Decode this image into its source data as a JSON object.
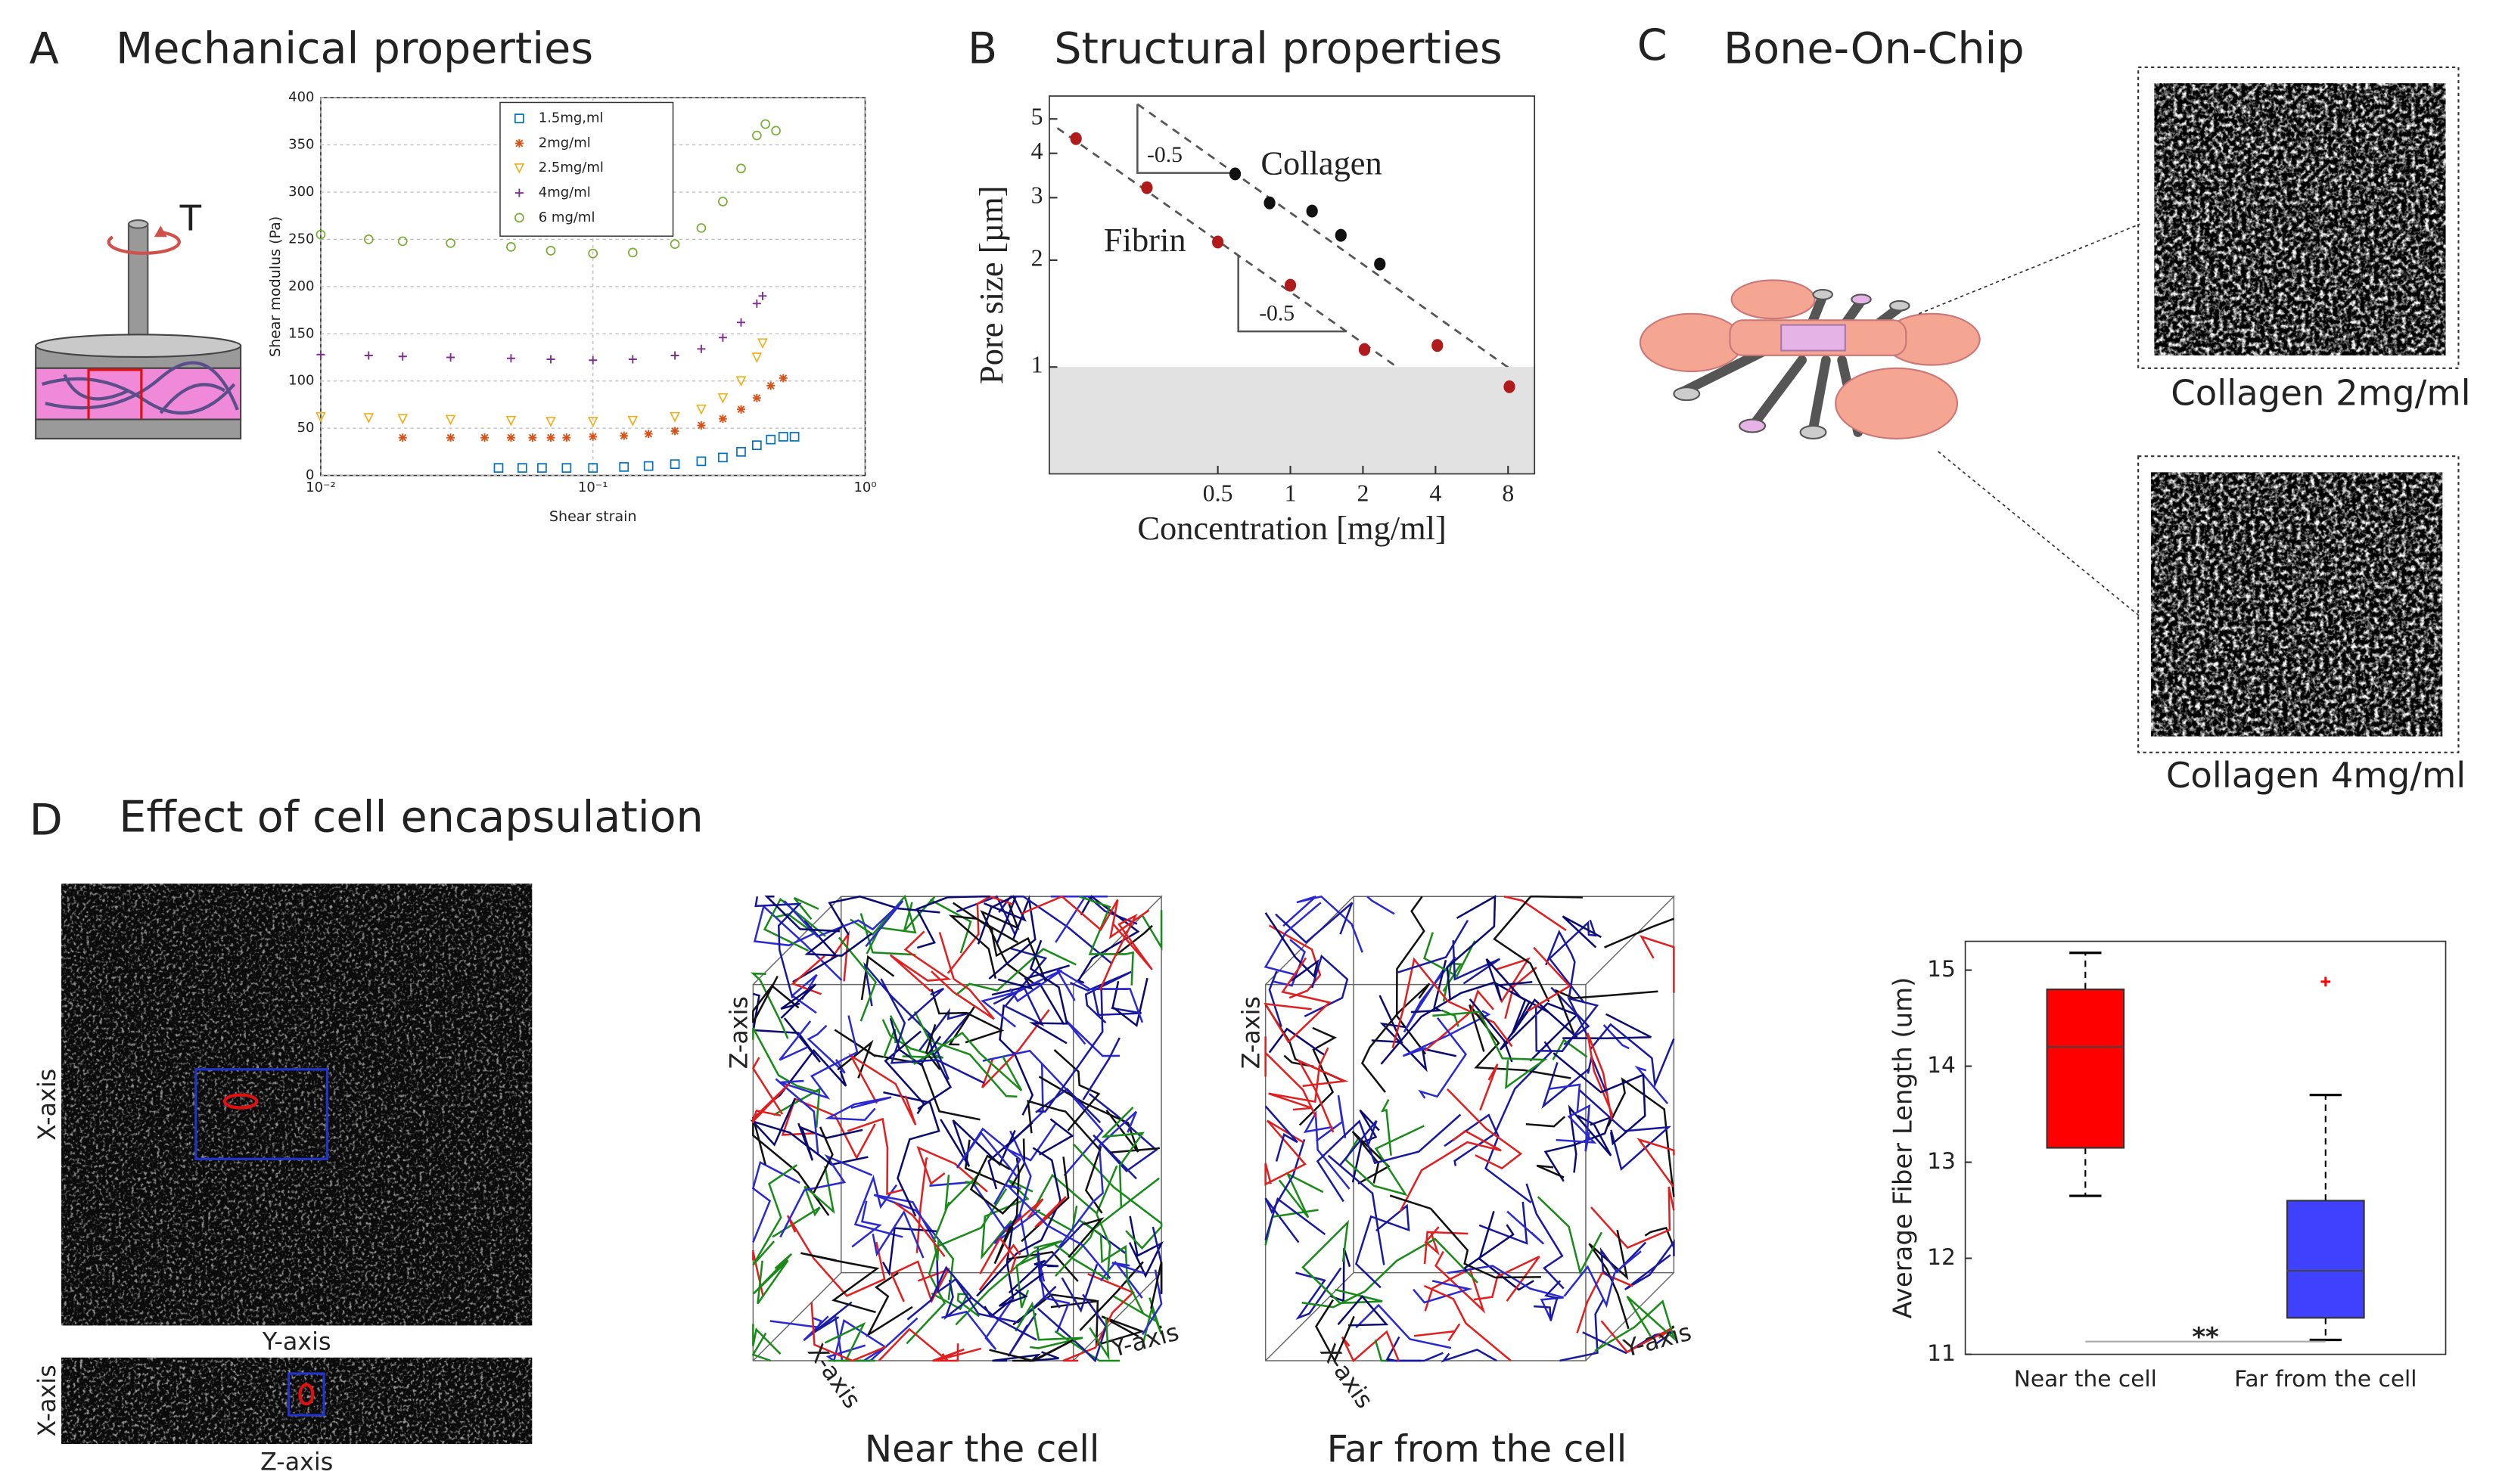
{
  "panels": {
    "A": {
      "letter": "A",
      "title": "Mechanical properties",
      "torque": "T"
    },
    "B": {
      "letter": "B",
      "title": "Structural properties"
    },
    "C": {
      "letter": "C",
      "title": "Bone-On-Chip",
      "image_labels": [
        "Collagen 2mg/ml",
        "Collagen 4mg/ml"
      ]
    },
    "D": {
      "letter": "D",
      "title": "Effect of cell encapsulation",
      "image_axes": [
        "X-axis",
        "Y-axis",
        "X-axis",
        "Z-axis"
      ],
      "network_axes": [
        "Z-axis",
        "X-axis",
        "Y-axis"
      ],
      "network_captions": [
        "Near the cell",
        "Far from the cell"
      ]
    }
  },
  "chart_data": [
    {
      "type": "scatter",
      "xlabel": "Shear strain",
      "ylabel": "Shear modulus (Pa)",
      "xscale": "log",
      "xlim": [
        0.01,
        1
      ],
      "xticks": [
        {
          "value": 0.01,
          "label": "10⁻²"
        },
        {
          "value": 0.1,
          "label": "10⁻¹"
        },
        {
          "value": 1,
          "label": "10⁰"
        }
      ],
      "ylim": [
        0,
        400
      ],
      "yticks": [
        0,
        50,
        100,
        150,
        200,
        250,
        300,
        350,
        400
      ],
      "grid": true,
      "legend": "top",
      "series": [
        {
          "name": "1.5mg,ml",
          "color": "#0072bd",
          "marker": "square",
          "x": [
            0.045,
            0.055,
            0.065,
            0.08,
            0.1,
            0.13,
            0.16,
            0.2,
            0.25,
            0.3,
            0.35,
            0.4,
            0.45,
            0.5,
            0.55
          ],
          "values": [
            8,
            8,
            8,
            8,
            8,
            9,
            10,
            12,
            15,
            19,
            25,
            32,
            38,
            41,
            41
          ]
        },
        {
          "name": "2mg/ml",
          "color": "#d95319",
          "marker": "star",
          "x": [
            0.02,
            0.03,
            0.04,
            0.05,
            0.06,
            0.07,
            0.08,
            0.1,
            0.13,
            0.16,
            0.2,
            0.25,
            0.3,
            0.35,
            0.4,
            0.45,
            0.5
          ],
          "values": [
            40,
            40,
            40,
            40,
            40,
            40,
            40,
            41,
            42,
            44,
            47,
            53,
            60,
            70,
            82,
            95,
            103
          ]
        },
        {
          "name": "2.5mg/ml",
          "color": "#edb120",
          "marker": "triangle",
          "x": [
            0.01,
            0.015,
            0.02,
            0.03,
            0.05,
            0.07,
            0.1,
            0.14,
            0.2,
            0.25,
            0.3,
            0.35,
            0.4,
            0.42
          ],
          "values": [
            62,
            61,
            60,
            59,
            58,
            57,
            57,
            58,
            62,
            70,
            82,
            100,
            125,
            140
          ]
        },
        {
          "name": "4mg/ml",
          "color": "#7e2f8e",
          "marker": "plus",
          "x": [
            0.01,
            0.015,
            0.02,
            0.03,
            0.05,
            0.07,
            0.1,
            0.14,
            0.2,
            0.25,
            0.3,
            0.35,
            0.4,
            0.42
          ],
          "values": [
            128,
            127,
            126,
            125,
            124,
            123,
            122,
            123,
            127,
            134,
            146,
            162,
            182,
            190
          ]
        },
        {
          "name": "6 mg/ml",
          "color": "#77ac30",
          "marker": "circle",
          "x": [
            0.01,
            0.015,
            0.02,
            0.03,
            0.05,
            0.07,
            0.1,
            0.14,
            0.2,
            0.25,
            0.3,
            0.35,
            0.4,
            0.43,
            0.47
          ],
          "values": [
            255,
            250,
            248,
            246,
            242,
            238,
            235,
            236,
            245,
            262,
            290,
            325,
            360,
            372,
            365
          ]
        }
      ]
    },
    {
      "type": "scatter",
      "xlabel": "Concentration [mg/ml]",
      "ylabel": "Pore size [µm]",
      "xscale": "log",
      "yscale": "log",
      "xlim": [
        0.1,
        10.3
      ],
      "xticks": [
        0.5,
        1,
        2,
        4,
        8
      ],
      "ylim": [
        0.5,
        5.8
      ],
      "yticks": [
        1,
        2,
        3,
        4,
        5
      ],
      "shaded_below": 1,
      "annotations": [
        "-0.5",
        "-0.5"
      ],
      "series": [
        {
          "name": "Collagen",
          "color": "#111111",
          "x": [
            0.59,
            0.82,
            1.23,
            1.62,
            2.35
          ],
          "values": [
            3.5,
            2.9,
            2.75,
            2.35,
            1.95
          ]
        },
        {
          "name": "Fibrin",
          "color": "#b01c1c",
          "x": [
            0.129,
            0.254,
            0.5,
            1,
            2.03,
            4.07,
            8.1
          ],
          "values": [
            4.4,
            3.2,
            2.25,
            1.7,
            1.12,
            1.15,
            0.88
          ]
        }
      ]
    },
    {
      "type": "box",
      "ylabel": "Average Fiber Length (um)",
      "categories": [
        "Near the cell",
        "Far from the cell"
      ],
      "ylim": [
        11,
        15.3
      ],
      "yticks": [
        11,
        12,
        13,
        14,
        15
      ],
      "colors": [
        "#ff0000",
        "#4040ff"
      ],
      "annotation": "**",
      "boxes": [
        {
          "min": 12.65,
          "q1": 13.15,
          "median": 14.2,
          "q3": 14.8,
          "max": 15.18,
          "outliers": []
        },
        {
          "min": 11.15,
          "q1": 11.38,
          "median": 11.87,
          "q3": 12.6,
          "max": 13.7,
          "outliers": [
            14.88
          ]
        }
      ]
    }
  ]
}
